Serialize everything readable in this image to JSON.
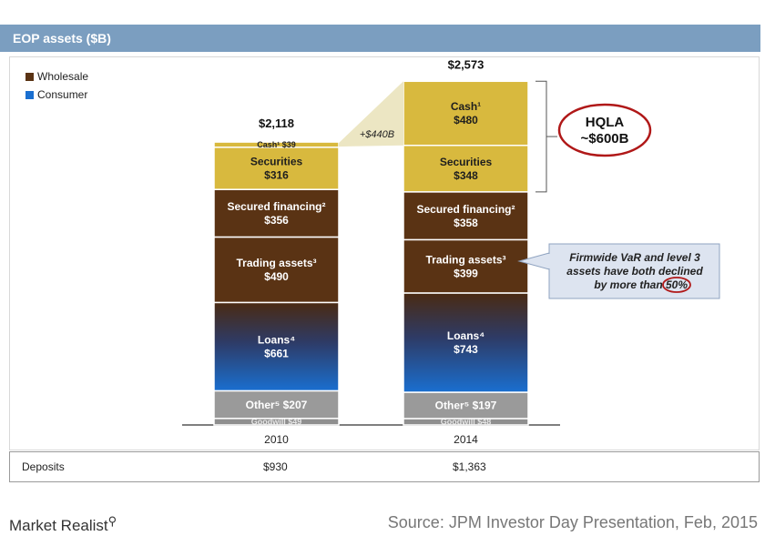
{
  "header": {
    "title": "EOP assets ($B)"
  },
  "legend": [
    {
      "label": "Wholesale",
      "color": "#5a3314"
    },
    {
      "label": "Consumer",
      "color": "#1a6fd0"
    }
  ],
  "chart_data": {
    "type": "bar",
    "stacked": true,
    "categories": [
      "2010",
      "2014"
    ],
    "totals": [
      "$2,118",
      "$2,573"
    ],
    "segments": [
      {
        "key": "goodwill",
        "values": [
          49,
          48
        ],
        "labels": [
          "Goodwill $49",
          "Goodwill $48"
        ]
      },
      {
        "key": "other",
        "values": [
          207,
          197
        ],
        "labels": [
          "Other⁵ $207",
          "Other⁵ $197"
        ]
      },
      {
        "key": "loans",
        "values": [
          661,
          743
        ],
        "labels": [
          "Loans⁴\n$661",
          "Loans⁴\n$743"
        ]
      },
      {
        "key": "trading",
        "values": [
          490,
          399
        ],
        "labels": [
          "Trading assets³\n$490",
          "Trading assets³\n$399"
        ]
      },
      {
        "key": "secured",
        "values": [
          356,
          358
        ],
        "labels": [
          "Secured  financing²\n$356",
          "Secured  financing²\n$358"
        ]
      },
      {
        "key": "securities",
        "values": [
          316,
          348
        ],
        "labels": [
          "Securities\n$316",
          "Securities\n$348"
        ]
      },
      {
        "key": "cash",
        "values": [
          39,
          480
        ],
        "labels": [
          "Cash¹ $39",
          "Cash¹\n$480"
        ]
      }
    ],
    "colors": {
      "goodwill": "#8f8f8f",
      "other": "#9a9a9a",
      "wholesale": "#5a3314",
      "consumer": "#1a6fd0",
      "cash": "#d8b93e"
    },
    "annotations": {
      "growth": "+$440B",
      "hqla": [
        "HQLA",
        "~$600B"
      ],
      "var_note": [
        "Firmwide VaR and level 3",
        "assets have both declined",
        "by more than",
        "50%"
      ]
    }
  },
  "deposits": {
    "label": "Deposits",
    "values": [
      "$930",
      "$1,363"
    ]
  },
  "footer": {
    "brand": "Market Realist",
    "source": "Source: JPM Investor Day Presentation, Feb, 2015"
  }
}
